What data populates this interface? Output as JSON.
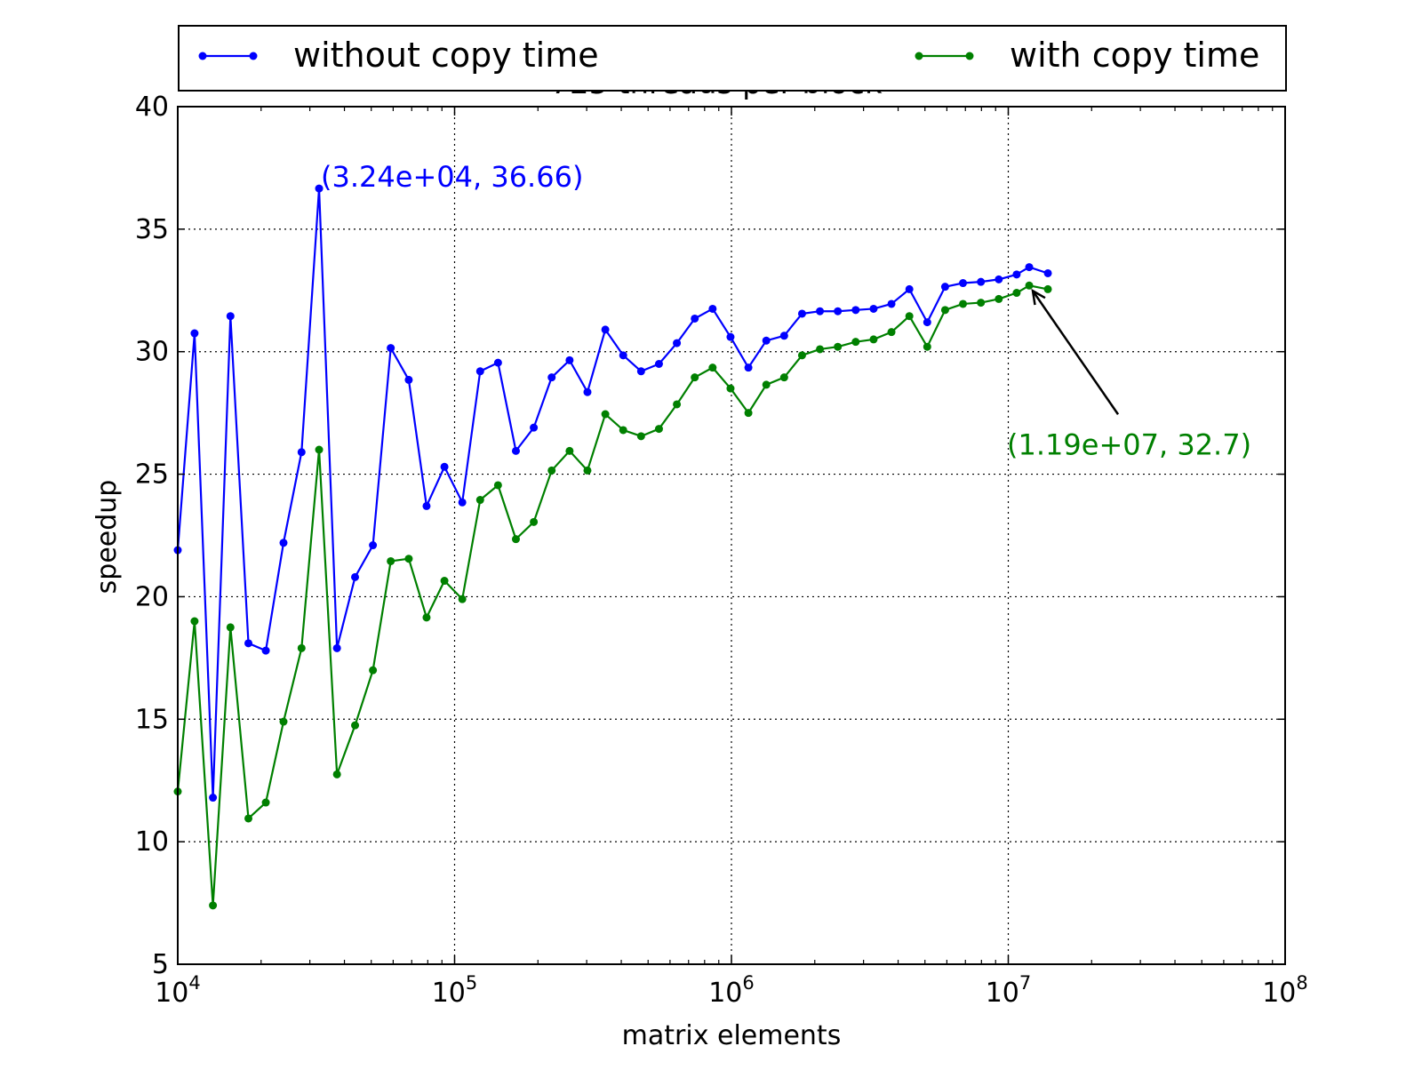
{
  "chart_data": {
    "type": "line",
    "title": "725 threads per block",
    "xlabel": "matrix elements",
    "ylabel": "speedup",
    "xscale": "log",
    "xlim": [
      10000,
      100000000
    ],
    "ylim": [
      5,
      40
    ],
    "x_ticks": [
      {
        "value": 10000,
        "base": "10",
        "exp": "4"
      },
      {
        "value": 100000,
        "base": "10",
        "exp": "5"
      },
      {
        "value": 1000000,
        "base": "10",
        "exp": "6"
      },
      {
        "value": 10000000,
        "base": "10",
        "exp": "7"
      },
      {
        "value": 100000000,
        "base": "10",
        "exp": "8"
      }
    ],
    "y_ticks": [
      5,
      10,
      15,
      20,
      25,
      30,
      35,
      40
    ],
    "y_tick_labels": [
      "5",
      "10",
      "15",
      "20",
      "25",
      "30",
      "35",
      "40"
    ],
    "grid": true,
    "legend_position": "top",
    "series": [
      {
        "name": "without copy time",
        "color": "#0000ff",
        "x": [
          10000,
          11500,
          13400,
          15500,
          18000,
          20800,
          24100,
          28000,
          32400,
          37600,
          43700,
          50700,
          58800,
          68300,
          79200,
          91900,
          106600,
          123700,
          143500,
          166500,
          193200,
          224200,
          260200,
          301900,
          350300,
          406500,
          471700,
          547300,
          635100,
          737000,
          855200,
          992300,
          1151400,
          1336100,
          1550400,
          1799000,
          2087500,
          2422300,
          2810800,
          3261600,
          3784700,
          4391700,
          5096000,
          5913300,
          6861800,
          7962300,
          9239300,
          10721000,
          11900000,
          13900000
        ],
        "values": [
          21.9,
          30.75,
          11.8,
          31.45,
          18.1,
          17.8,
          22.2,
          25.9,
          36.66,
          17.9,
          20.8,
          22.1,
          30.15,
          28.85,
          23.7,
          25.3,
          23.85,
          29.2,
          29.55,
          25.95,
          26.9,
          28.95,
          29.65,
          28.35,
          30.9,
          29.85,
          29.2,
          29.5,
          30.35,
          31.35,
          31.75,
          30.6,
          29.35,
          30.45,
          30.65,
          31.55,
          31.65,
          31.65,
          31.7,
          31.75,
          31.95,
          32.55,
          31.2,
          32.65,
          32.8,
          32.85,
          32.95,
          33.15,
          33.45,
          33.2
        ]
      },
      {
        "name": "with copy time",
        "color": "#008000",
        "x": [
          10000,
          11500,
          13400,
          15500,
          18000,
          20800,
          24100,
          28000,
          32400,
          37600,
          43700,
          50700,
          58800,
          68300,
          79200,
          91900,
          106600,
          123700,
          143500,
          166500,
          193200,
          224200,
          260200,
          301900,
          350300,
          406500,
          471700,
          547300,
          635100,
          737000,
          855200,
          992300,
          1151400,
          1336100,
          1550400,
          1799000,
          2087500,
          2422300,
          2810800,
          3261600,
          3784700,
          4391700,
          5096000,
          5913300,
          6861800,
          7962300,
          9239300,
          10721000,
          11900000,
          13900000
        ],
        "values": [
          12.05,
          19.0,
          7.4,
          18.75,
          10.95,
          11.6,
          14.9,
          17.9,
          26.0,
          12.75,
          14.75,
          17.0,
          21.45,
          21.55,
          19.15,
          20.65,
          19.9,
          23.95,
          24.55,
          22.35,
          23.05,
          25.15,
          25.95,
          25.15,
          27.45,
          26.8,
          26.55,
          26.85,
          27.85,
          28.95,
          29.35,
          28.5,
          27.5,
          28.65,
          28.95,
          29.85,
          30.1,
          30.2,
          30.4,
          30.5,
          30.8,
          31.45,
          30.2,
          31.7,
          31.95,
          32.0,
          32.15,
          32.4,
          32.7,
          32.55
        ]
      }
    ],
    "annotations": [
      {
        "text": "(3.24e+04, 36.66)",
        "color": "#0000ff",
        "x": 32400,
        "y": 36.66,
        "arrow": false
      },
      {
        "text": "(1.19e+07, 32.7)",
        "color": "#008000",
        "x": 11900000,
        "y": 32.7,
        "arrow": true
      }
    ]
  }
}
